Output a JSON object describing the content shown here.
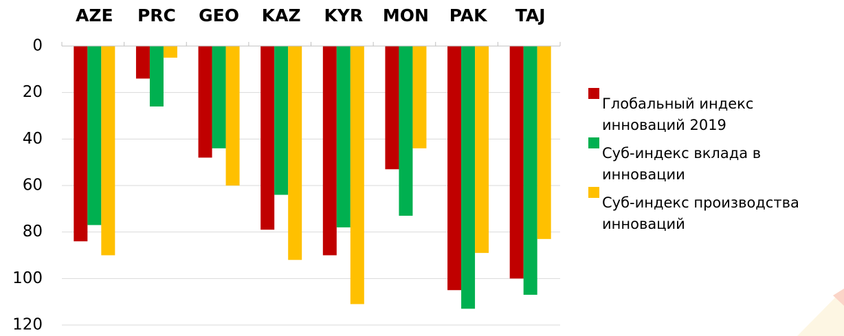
{
  "chart_data": {
    "type": "bar",
    "categories": [
      "AZE",
      "PRC",
      "GEO",
      "KAZ",
      "KYR",
      "MON",
      "PAK",
      "TAJ"
    ],
    "series": [
      {
        "name": "Глобальный индекс инноваций 2019",
        "color": "#c00000",
        "values": [
          84,
          14,
          48,
          79,
          90,
          53,
          105,
          100
        ]
      },
      {
        "name": "Суб-индекс вклада в инновации",
        "color": "#00b050",
        "values": [
          77,
          26,
          44,
          64,
          78,
          73,
          113,
          107
        ]
      },
      {
        "name": "Суб-индекс производства инноваций",
        "color": "#ffc000",
        "values": [
          90,
          5,
          60,
          92,
          111,
          44,
          89,
          83
        ]
      }
    ],
    "ylim": [
      0,
      120
    ],
    "yticks": [
      0,
      20,
      40,
      60,
      80,
      100,
      120
    ],
    "y_inverted": true,
    "grid": true,
    "legend": "right"
  }
}
